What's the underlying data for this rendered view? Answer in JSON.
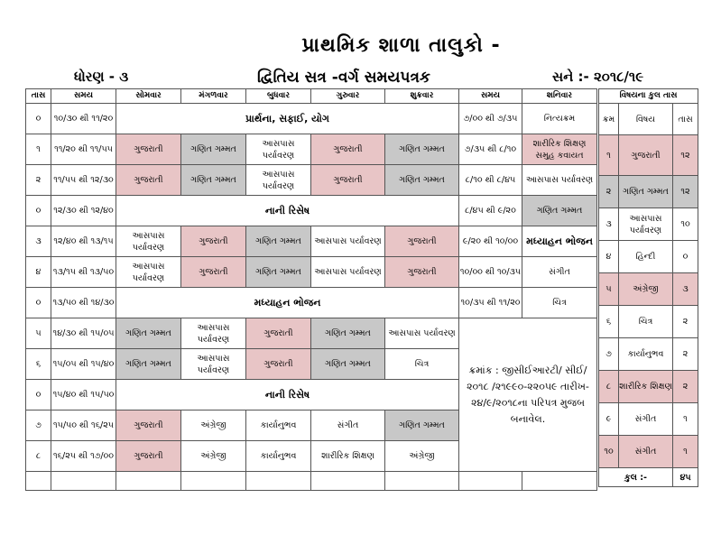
{
  "header": {
    "title": "પ્રાથમિક શાળા તાલુકો -",
    "class_label": "ધોરણ - ૩",
    "term_label": "દ્વિતિય સત્ર -વર્ગ સમયપત્રક",
    "year_label": "સને :- ૨૦૧૮/૧૯"
  },
  "timetable": {
    "headers": [
      "તાસ",
      "સમય",
      "સોમવાર",
      "મંગળવાર",
      "બુધવાર",
      "ગુરુવાર",
      "શુક્રવાર",
      "સમય",
      "શનિવાર"
    ],
    "rows": [
      {
        "tas": "૦",
        "time": "૧૦/૩૦ થી ૧૧/૨૦",
        "merged": "પ્રાર્થના, સફાઈ, યોગ",
        "sat_time": "૭/૦૦ થી ૭/૩૫",
        "sat": "નિત્યક્રમ"
      },
      {
        "tas": "૧",
        "time": "૧૧/૨૦ થી ૧૧/૫૫",
        "cells": [
          "ગુજરાતી",
          "ગણિત ગમ્મત",
          "આસપાસ પર્યાવરણ",
          "ગુજરાતી",
          "ગણિત ગમ્મત"
        ],
        "sat_time": "૭/૩૫ થી ૮/૧૦",
        "sat": "શારીરિક શિક્ષણ સમુહ કવાયત"
      },
      {
        "tas": "૨",
        "time": "૧૧/૫૫ થી ૧૨/૩૦",
        "cells": [
          "ગુજરાતી",
          "ગણિત ગમ્મત",
          "આસપાસ પર્યાવરણ",
          "ગુજરાતી",
          "ગણિત ગમ્મત"
        ],
        "sat_time": "૮/૧૦ થી ૮/૪૫",
        "sat": "આસપાસ પર્યાવરણ"
      },
      {
        "tas": "૦",
        "time": "૧૨/૩૦ થી ૧૨/૪૦",
        "merged": "નાની રિસેષ",
        "sat_time": "૮/૪૫ થી ૯/૨૦",
        "sat": "ગણિત ગમ્મત"
      },
      {
        "tas": "૩",
        "time": "૧૨/૪૦ થી ૧૩/૧૫",
        "cells": [
          "આસપાસ પર્યાવરણ",
          "ગુજરાતી",
          "ગણિત ગમ્મત",
          "આસપાસ પર્યાવરણ",
          "ગુજરાતી"
        ],
        "sat_time": "૯/૨૦ થી ૧૦/૦૦",
        "sat": "મધ્યાહન ભોજન"
      },
      {
        "tas": "૪",
        "time": "૧૩/૧૫ થી ૧૩/૫૦",
        "cells": [
          "આસપાસ પર્યાવરણ",
          "ગુજરાતી",
          "ગણિત ગમ્મત",
          "આસપાસ પર્યાવરણ",
          "ગુજરાતી"
        ],
        "sat_time": "૧૦/૦૦ થી ૧૦/૩૫",
        "sat": "સંગીત"
      },
      {
        "tas": "૦",
        "time": "૧૩/૫૦ થી ૧૪/૩૦",
        "merged": "મધ્યાહન ભોજન",
        "sat_time": "૧૦/૩૫ થી ૧૧/૨૦",
        "sat": "ચિત્ર"
      },
      {
        "tas": "૫",
        "time": "૧૪/૩૦ થી ૧૫/૦૫",
        "cells": [
          "ગણિત ગમ્મત",
          "આસપાસ પર્યાવરણ",
          "ગુજરાતી",
          "ગણિત ગમ્મત",
          "આસપાસ પર્યાવરણ"
        ]
      },
      {
        "tas": "૬",
        "time": "૧૫/૦૫ થી ૧૫/૪૦",
        "cells": [
          "ગણિત ગમ્મત",
          "આસપાસ પર્યાવરણ",
          "ગુજરાતી",
          "ગણિત ગમ્મત",
          "ચિત્ર"
        ]
      },
      {
        "tas": "૦",
        "time": "૧૫/૪૦ થી ૧૫/૫૦",
        "merged": "નાની રિસેષ"
      },
      {
        "tas": "૭",
        "time": "૧૫/૫૦ થી ૧૬/૨૫",
        "cells": [
          "ગુજરાતી",
          "અંગ્રેજી",
          "કાર્યાનુભવ",
          "સંગીત",
          "ગણિત ગમ્મત"
        ]
      },
      {
        "tas": "૮",
        "time": "૧૬/૨૫ થી ૧૭/૦૦",
        "cells": [
          "ગુજરાતી",
          "અંગ્રેજી",
          "કાર્યાનુભવ",
          "શારીરિક શિક્ષણ",
          "અંગ્રેજી"
        ]
      }
    ],
    "note": "ક્રમાંક : જીસીઈઆરટી/ સીઈ/૨૦૧૮ /૨૧૯૯૦-૨૨૦૫૯ તારીખ- ૨૪/૯/૨૦૧૮ના પરિપત્ર મુજબ બનાવેલ."
  },
  "summary": {
    "title": "વિષયના કુલ તાસ",
    "headers": [
      "ક્રમ",
      "વિષય",
      "તાસ"
    ],
    "rows": [
      {
        "n": "૧",
        "subject": "ગુજરાતી",
        "count": "૧૨"
      },
      {
        "n": "૨",
        "subject": "ગણિત ગમ્મત",
        "count": "૧૨"
      },
      {
        "n": "૩",
        "subject": "આસપાસ પર્યાવરણ",
        "count": "૧૦"
      },
      {
        "n": "૪",
        "subject": "હિન્દી",
        "count": "૦"
      },
      {
        "n": "૫",
        "subject": "અંગ્રેજી",
        "count": "૩"
      },
      {
        "n": "૬",
        "subject": "ચિત્ર",
        "count": "૨"
      },
      {
        "n": "૭",
        "subject": "કાર્યાનુભવ",
        "count": "૨"
      },
      {
        "n": "૮",
        "subject": "શારીરિક શિક્ષણ",
        "count": "૨"
      },
      {
        "n": "૯",
        "subject": "સંગીત",
        "count": "૧"
      },
      {
        "n": "૧૦",
        "subject": "સંગીત",
        "count": "૧"
      }
    ],
    "total_label": "કુલ :-",
    "total": "૪૫"
  },
  "colors": {
    "gujarati": "#e8c5c6",
    "ganit": "#c8c8c8"
  }
}
